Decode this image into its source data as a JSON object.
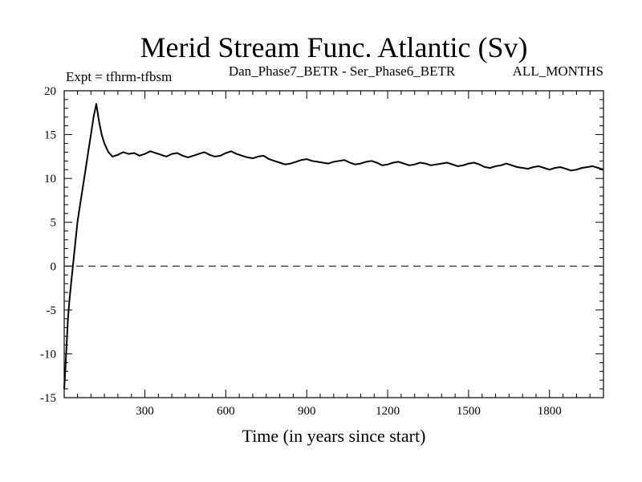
{
  "chart_data": {
    "type": "line",
    "title": "Merid Stream Func. Atlantic (Sv)",
    "subtitle_left": "Expt = tfhrm-tfbsm",
    "subtitle_center": "Dan_Phase7_BETR - Ser_Phase6_BETR",
    "subtitle_right": "ALL_MONTHS",
    "xlabel": "Time (in years since start)",
    "ylabel": "",
    "xlim": [
      1,
      2000
    ],
    "ylim": [
      -15,
      20
    ],
    "x_ticks": [
      300,
      600,
      900,
      1200,
      1500,
      1800
    ],
    "y_ticks": [
      -15,
      -10,
      -5,
      0,
      5,
      10,
      15,
      20
    ],
    "reference_line": {
      "y": 0,
      "style": "dashed"
    },
    "series": [
      {
        "name": "tfhrm-tfbsm",
        "x": [
          1,
          5,
          10,
          15,
          20,
          30,
          40,
          50,
          60,
          70,
          80,
          90,
          100,
          110,
          120,
          130,
          140,
          150,
          165,
          180,
          200,
          220,
          240,
          260,
          280,
          300,
          320,
          340,
          360,
          380,
          400,
          420,
          440,
          460,
          480,
          500,
          520,
          540,
          560,
          580,
          600,
          620,
          640,
          660,
          680,
          700,
          720,
          740,
          760,
          780,
          800,
          820,
          840,
          860,
          880,
          900,
          920,
          940,
          960,
          980,
          1000,
          1020,
          1040,
          1060,
          1080,
          1100,
          1120,
          1140,
          1160,
          1180,
          1200,
          1220,
          1240,
          1260,
          1280,
          1300,
          1320,
          1340,
          1360,
          1380,
          1400,
          1420,
          1440,
          1460,
          1480,
          1500,
          1520,
          1540,
          1560,
          1580,
          1600,
          1620,
          1640,
          1660,
          1680,
          1700,
          1720,
          1740,
          1760,
          1780,
          1800,
          1820,
          1840,
          1860,
          1880,
          1900,
          1920,
          1940,
          1960,
          1980,
          2000
        ],
        "values": [
          -14,
          -12,
          -9,
          -6,
          -4,
          -1,
          2,
          5,
          7,
          9,
          11,
          13,
          15,
          17,
          18.5,
          16.5,
          15,
          14,
          13,
          12.5,
          12.7,
          13.0,
          12.8,
          12.9,
          12.6,
          12.8,
          13.1,
          12.9,
          12.7,
          12.5,
          12.8,
          12.9,
          12.6,
          12.4,
          12.6,
          12.8,
          13.0,
          12.7,
          12.5,
          12.6,
          12.9,
          13.1,
          12.8,
          12.6,
          12.4,
          12.3,
          12.5,
          12.6,
          12.2,
          12.0,
          11.8,
          11.6,
          11.7,
          11.9,
          12.1,
          12.2,
          12.0,
          11.9,
          11.8,
          11.7,
          11.9,
          12.0,
          12.1,
          11.8,
          11.6,
          11.7,
          11.9,
          12.0,
          11.8,
          11.5,
          11.6,
          11.8,
          11.9,
          11.7,
          11.5,
          11.6,
          11.8,
          11.7,
          11.5,
          11.6,
          11.7,
          11.8,
          11.6,
          11.4,
          11.5,
          11.7,
          11.8,
          11.6,
          11.3,
          11.2,
          11.4,
          11.5,
          11.7,
          11.5,
          11.3,
          11.2,
          11.1,
          11.3,
          11.4,
          11.2,
          11.0,
          11.2,
          11.3,
          11.1,
          10.9,
          11.0,
          11.2,
          11.3,
          11.4,
          11.2,
          11.0
        ]
      }
    ]
  }
}
